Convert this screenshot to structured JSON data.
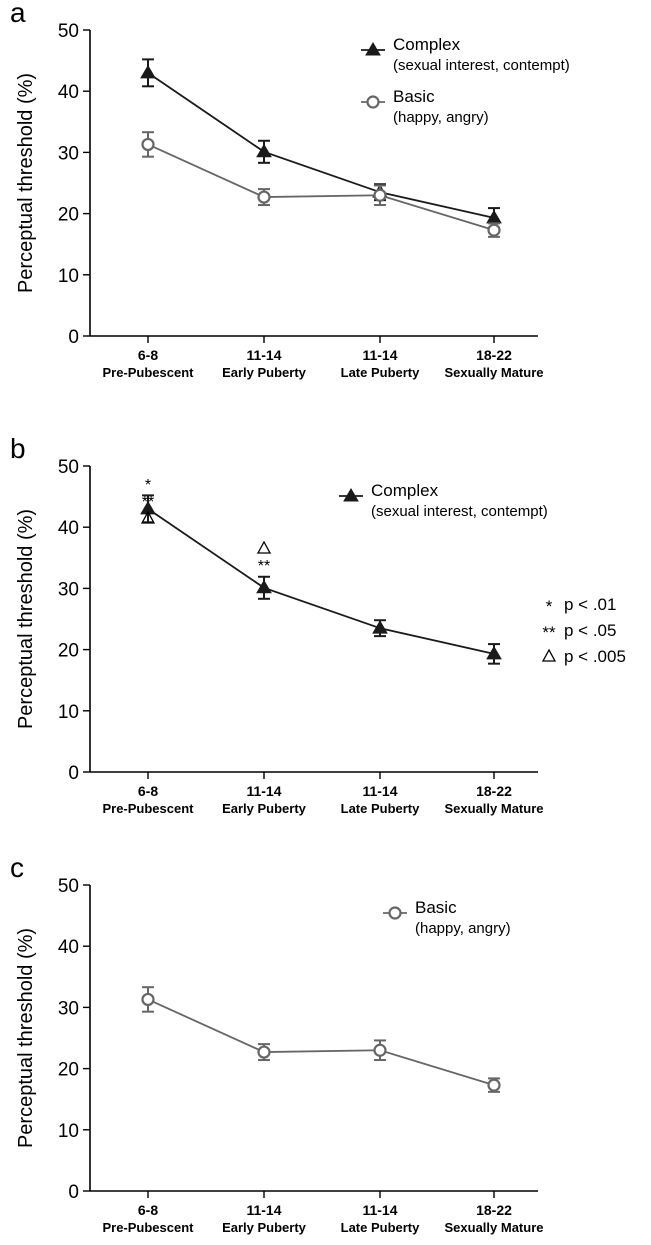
{
  "chart_data": [
    {
      "panel": "a",
      "type": "line",
      "ylabel": "Perceptual threshold (%)",
      "ylim": [
        0,
        50
      ],
      "yticks": [
        0,
        10,
        20,
        30,
        40,
        50
      ],
      "categories": [
        "6-8",
        "11-14",
        "11-14",
        "18-22"
      ],
      "category_sublabels": [
        "Pre-Pubescent",
        "Early Puberty",
        "Late Puberty",
        "Sexually Mature"
      ],
      "legend_position": "top-right",
      "grid": false,
      "series": [
        {
          "name": "Complex",
          "description": "(sexual interest, contempt)",
          "marker": "filled-triangle",
          "color": "#1a1a1a",
          "values": [
            43.0,
            30.1,
            23.5,
            19.3
          ],
          "errors": [
            2.2,
            1.8,
            1.3,
            1.6
          ]
        },
        {
          "name": "Basic",
          "description": "(happy, angry)",
          "marker": "open-circle",
          "color": "#666666",
          "values": [
            31.3,
            22.7,
            23.0,
            17.3
          ],
          "errors": [
            2.0,
            1.3,
            1.6,
            1.1
          ]
        }
      ]
    },
    {
      "panel": "b",
      "type": "line",
      "ylabel": "Perceptual threshold (%)",
      "ylim": [
        0,
        50
      ],
      "yticks": [
        0,
        10,
        20,
        30,
        40,
        50
      ],
      "categories": [
        "6-8",
        "11-14",
        "11-14",
        "18-22"
      ],
      "category_sublabels": [
        "Pre-Pubescent",
        "Early Puberty",
        "Late Puberty",
        "Sexually Mature"
      ],
      "legend_position": "top-right",
      "grid": false,
      "series": [
        {
          "name": "Complex",
          "description": "(sexual interest, contempt)",
          "marker": "filled-triangle",
          "color": "#1a1a1a",
          "values": [
            43.0,
            30.1,
            23.5,
            19.3
          ],
          "errors": [
            2.2,
            1.8,
            1.3,
            1.6
          ]
        }
      ],
      "significance": [
        {
          "category_index": 0,
          "marks": [
            "*",
            "**",
            "△"
          ]
        },
        {
          "category_index": 1,
          "marks": [
            "△",
            "**"
          ]
        }
      ],
      "significance_key": [
        {
          "symbol": "*",
          "text": "p < .01"
        },
        {
          "symbol": "**",
          "text": "p < .05"
        },
        {
          "symbol": "△",
          "text": "p < .005"
        }
      ]
    },
    {
      "panel": "c",
      "type": "line",
      "ylabel": "Perceptual threshold (%)",
      "ylim": [
        0,
        50
      ],
      "yticks": [
        0,
        10,
        20,
        30,
        40,
        50
      ],
      "categories": [
        "6-8",
        "11-14",
        "11-14",
        "18-22"
      ],
      "category_sublabels": [
        "Pre-Pubescent",
        "Early Puberty",
        "Late Puberty",
        "Sexually Mature"
      ],
      "legend_position": "top-right",
      "grid": false,
      "series": [
        {
          "name": "Basic",
          "description": "(happy, angry)",
          "marker": "open-circle",
          "color": "#666666",
          "values": [
            31.3,
            22.7,
            23.0,
            17.3
          ],
          "errors": [
            2.0,
            1.3,
            1.6,
            1.1
          ]
        }
      ]
    }
  ]
}
